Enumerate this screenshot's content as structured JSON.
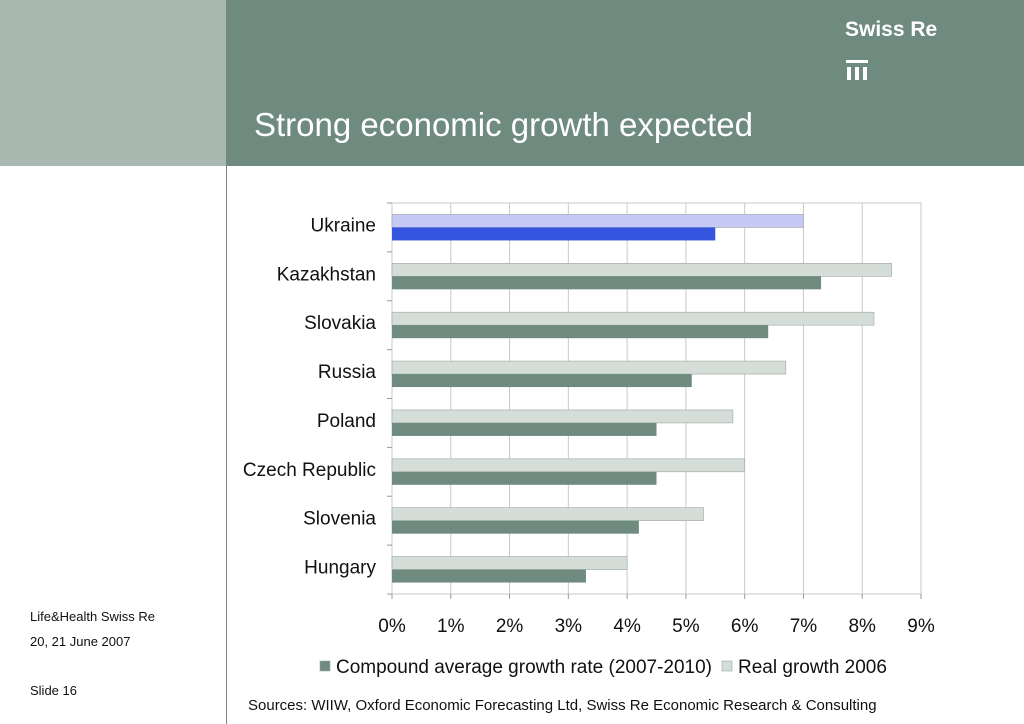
{
  "slide": {
    "title": "Strong economic growth expected",
    "logo_text": "Swiss Re",
    "event": "Life&Health Swiss Re",
    "date": "20, 21 June 2007",
    "slide_number": "Slide 16",
    "sources": "Sources: WIIW, Oxford Economic Forecasting Ltd, Swiss Re Economic Research & Consulting"
  },
  "chart_data": {
    "type": "bar",
    "orientation": "horizontal",
    "categories": [
      "Ukraine",
      "Kazakhstan",
      "Slovakia",
      "Russia",
      "Poland",
      "Czech Republic",
      "Slovenia",
      "Hungary"
    ],
    "series": [
      {
        "name": "Real growth 2006",
        "values": [
          7.0,
          8.5,
          8.2,
          6.7,
          5.8,
          6.0,
          5.3,
          4.0
        ],
        "color": "#d5ddd8",
        "highlight_color": "#c6c9f5"
      },
      {
        "name": "Compound average growth rate (2007-2010)",
        "values": [
          5.5,
          7.3,
          6.4,
          5.1,
          4.5,
          4.5,
          4.2,
          3.3
        ],
        "color": "#6f8b80",
        "highlight_color": "#3355e0"
      }
    ],
    "highlight_category": "Ukraine",
    "xlim": [
      0,
      9
    ],
    "xticks": [
      "0%",
      "1%",
      "2%",
      "3%",
      "4%",
      "5%",
      "6%",
      "7%",
      "8%",
      "9%"
    ],
    "legend_order": [
      "Compound average growth rate (2007-2010)",
      "Real growth 2006"
    ],
    "legend_position": "bottom",
    "grid": true
  },
  "colors": {
    "header": "#6f8b80",
    "left_block": "#a9b8b0"
  }
}
